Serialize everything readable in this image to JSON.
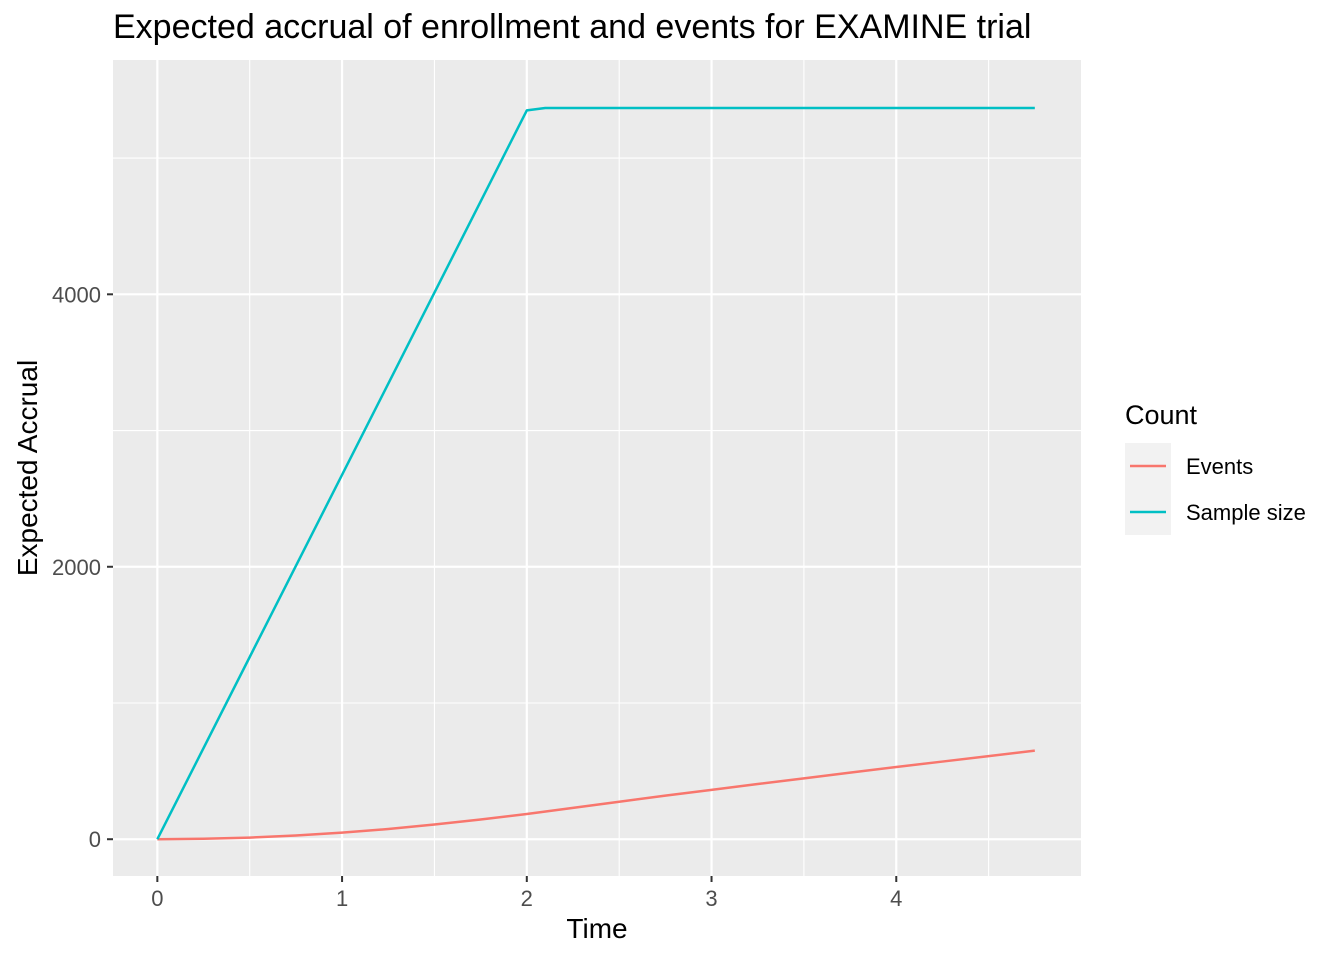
{
  "chart_data": {
    "type": "line",
    "title": "Expected accrual of enrollment and events for EXAMINE trial",
    "xlabel": "Time",
    "ylabel": "Expected Accrual",
    "xlim": [
      -0.24,
      5.0
    ],
    "ylim": [
      -270,
      5720
    ],
    "x_ticks": [
      0,
      1,
      2,
      3,
      4
    ],
    "x_tick_labels": [
      "0",
      "1",
      "2",
      "3",
      "4"
    ],
    "y_ticks": [
      0,
      2000,
      4000
    ],
    "y_tick_labels": [
      "0",
      "2000",
      "4000"
    ],
    "grid": true,
    "legend": {
      "title": "Count",
      "position": "right"
    },
    "series": [
      {
        "name": "Events",
        "color": "#F8766D",
        "x": [
          0,
          0.25,
          0.5,
          0.75,
          1.0,
          1.25,
          1.5,
          1.75,
          2.0,
          2.25,
          2.5,
          2.75,
          3.0,
          3.25,
          3.5,
          3.75,
          4.0,
          4.25,
          4.5,
          4.75
        ],
        "y": [
          0,
          3,
          12,
          27,
          48,
          75,
          108,
          145,
          185,
          230,
          275,
          320,
          362,
          405,
          447,
          489,
          530,
          570,
          610,
          650
        ]
      },
      {
        "name": "Sample size",
        "color": "#00BFC4",
        "x": [
          0,
          2.0,
          2.1,
          3.0,
          4.0,
          4.75
        ],
        "y": [
          0,
          5350,
          5368,
          5368,
          5368,
          5368
        ]
      }
    ]
  }
}
